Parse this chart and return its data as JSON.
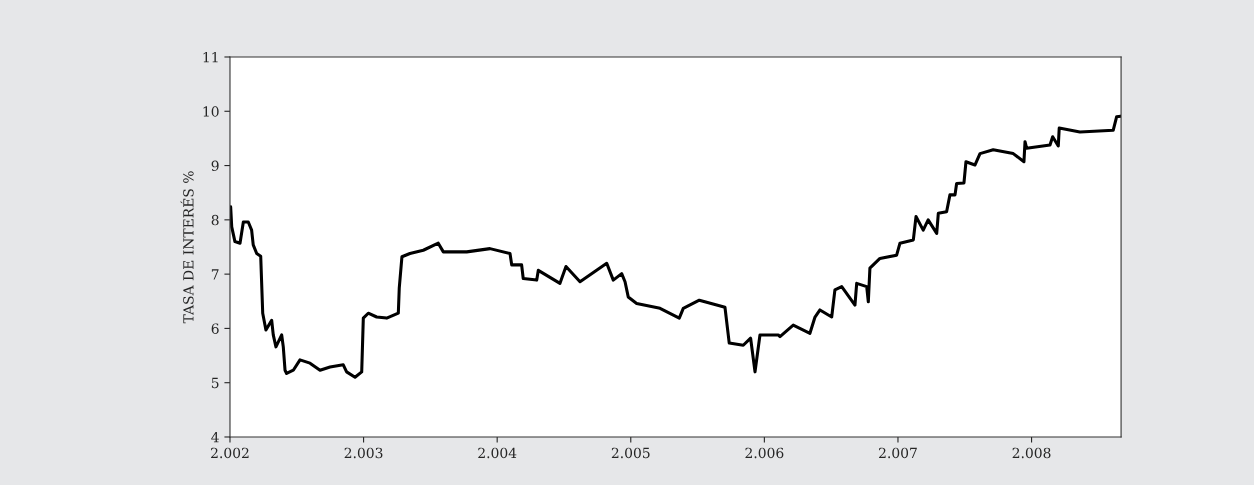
{
  "chart_data": {
    "type": "line",
    "ylabel": "TASA DE INTERÉS %",
    "x": [
      2002.005,
      2002.013,
      2002.037,
      2002.075,
      2002.1,
      2002.137,
      2002.162,
      2002.174,
      2002.2,
      2002.23,
      2002.245,
      2002.269,
      2002.312,
      2002.324,
      2002.344,
      2002.387,
      2002.399,
      2002.412,
      2002.424,
      2002.474,
      2002.524,
      2002.599,
      2002.674,
      2002.749,
      2002.848,
      2002.873,
      2002.936,
      2002.986,
      2002.998,
      2003.035,
      2003.098,
      2003.173,
      2003.26,
      2003.267,
      2003.287,
      2003.347,
      2003.447,
      2003.559,
      2003.597,
      2003.772,
      2003.946,
      2004.096,
      2004.109,
      2004.183,
      2004.195,
      2004.296,
      2004.308,
      2004.47,
      2004.515,
      2004.62,
      2004.82,
      2004.869,
      2004.932,
      2004.957,
      2004.981,
      2005.044,
      2005.219,
      2005.363,
      2005.393,
      2005.513,
      2005.705,
      2005.737,
      2005.842,
      2005.897,
      2005.93,
      2005.967,
      2006.104,
      2006.117,
      2006.216,
      2006.341,
      2006.379,
      2006.416,
      2006.504,
      2006.528,
      2006.579,
      2006.678,
      2006.691,
      2006.766,
      2006.778,
      2006.79,
      2006.865,
      2006.99,
      2007.015,
      2007.115,
      2007.135,
      2007.189,
      2007.226,
      2007.29,
      2007.302,
      2007.364,
      2007.389,
      2007.427,
      2007.439,
      2007.494,
      2007.509,
      2007.576,
      2007.614,
      2007.713,
      2007.863,
      2007.943,
      2007.951,
      2007.963,
      2008.138,
      2008.158,
      2008.2,
      2008.207,
      2008.362,
      2008.611,
      2008.637,
      2008.667
    ],
    "series": [
      {
        "color": "#000000",
        "values": [
          8.24,
          7.87,
          7.6,
          7.57,
          7.96,
          7.96,
          7.81,
          7.54,
          7.38,
          7.33,
          6.28,
          5.97,
          6.15,
          5.88,
          5.66,
          5.88,
          5.66,
          5.23,
          5.17,
          5.23,
          5.42,
          5.36,
          5.23,
          5.29,
          5.33,
          5.2,
          5.1,
          5.2,
          6.19,
          6.28,
          6.21,
          6.19,
          6.28,
          6.74,
          7.32,
          7.38,
          7.44,
          7.57,
          7.41,
          7.41,
          7.47,
          7.38,
          7.17,
          7.17,
          6.92,
          6.89,
          7.07,
          6.83,
          7.14,
          6.86,
          7.2,
          6.89,
          7.01,
          6.86,
          6.58,
          6.46,
          6.37,
          6.19,
          6.37,
          6.52,
          6.39,
          5.73,
          5.69,
          5.82,
          5.2,
          5.88,
          5.88,
          5.85,
          6.06,
          5.91,
          6.21,
          6.34,
          6.21,
          6.71,
          6.77,
          6.43,
          6.83,
          6.77,
          6.49,
          7.11,
          7.29,
          7.35,
          7.57,
          7.63,
          8.06,
          7.81,
          8.0,
          7.75,
          8.12,
          8.15,
          8.46,
          8.46,
          8.67,
          8.68,
          9.07,
          9.01,
          9.22,
          9.29,
          9.22,
          9.07,
          9.44,
          9.32,
          9.38,
          9.53,
          9.36,
          9.69,
          9.62,
          9.65,
          9.9,
          9.91
        ]
      }
    ],
    "xlim": [
      2002,
      2008.67
    ],
    "ylim": [
      4,
      11
    ],
    "xticks": [
      {
        "value": 2002,
        "label": "2.002"
      },
      {
        "value": 2003,
        "label": "2.003"
      },
      {
        "value": 2004,
        "label": "2.004"
      },
      {
        "value": 2005,
        "label": "2.005"
      },
      {
        "value": 2006,
        "label": "2.006"
      },
      {
        "value": 2007,
        "label": "2.007"
      },
      {
        "value": 2008,
        "label": "2.008"
      }
    ],
    "yticks": [
      4,
      5,
      6,
      7,
      8,
      9,
      10,
      11
    ],
    "grid": false,
    "line_style": "solid",
    "marker": "none"
  }
}
